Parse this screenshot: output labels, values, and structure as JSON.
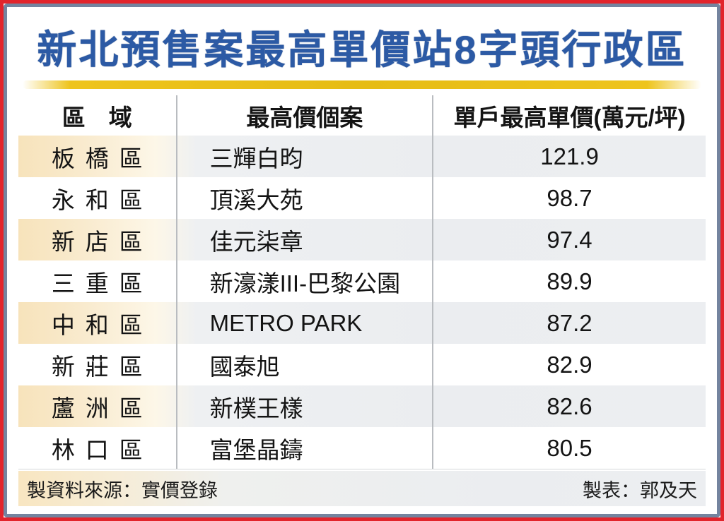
{
  "title": "新北預售案最高單價站8字頭行政區",
  "colors": {
    "frame_outer_red": "#e2242b",
    "frame_inner_slate": "#74849f",
    "title_blue": "#2c5aa5",
    "underline_gold": "#eec41d",
    "shaded_row_peach": "#f7e3bb",
    "shaded_row_gray": "#ebedf0"
  },
  "chart_data": {
    "type": "table",
    "title": "新北預售案最高單價站8字頭行政區",
    "columns": [
      "區　域",
      "最高價個案",
      "單戶最高單價(萬元/坪)"
    ],
    "unit": "萬元/坪",
    "rows": [
      {
        "district": "板橋區",
        "project": "三輝白昀",
        "price": "121.9"
      },
      {
        "district": "永和區",
        "project": "頂溪大苑",
        "price": "98.7"
      },
      {
        "district": "新店區",
        "project": "佳元柒章",
        "price": "97.4"
      },
      {
        "district": "三重區",
        "project": "新濠漾III-巴黎公園",
        "price": "89.9"
      },
      {
        "district": "中和區",
        "project": "METRO PARK",
        "price": "87.2"
      },
      {
        "district": "新莊區",
        "project": "國泰旭",
        "price": "82.9"
      },
      {
        "district": "蘆洲區",
        "project": "新樸王樣",
        "price": "82.6"
      },
      {
        "district": "林口區",
        "project": "富堡晶鑄",
        "price": "80.5"
      }
    ]
  },
  "footer": {
    "source": "製資料來源：實價登錄",
    "credit": "製表：郭及天"
  }
}
